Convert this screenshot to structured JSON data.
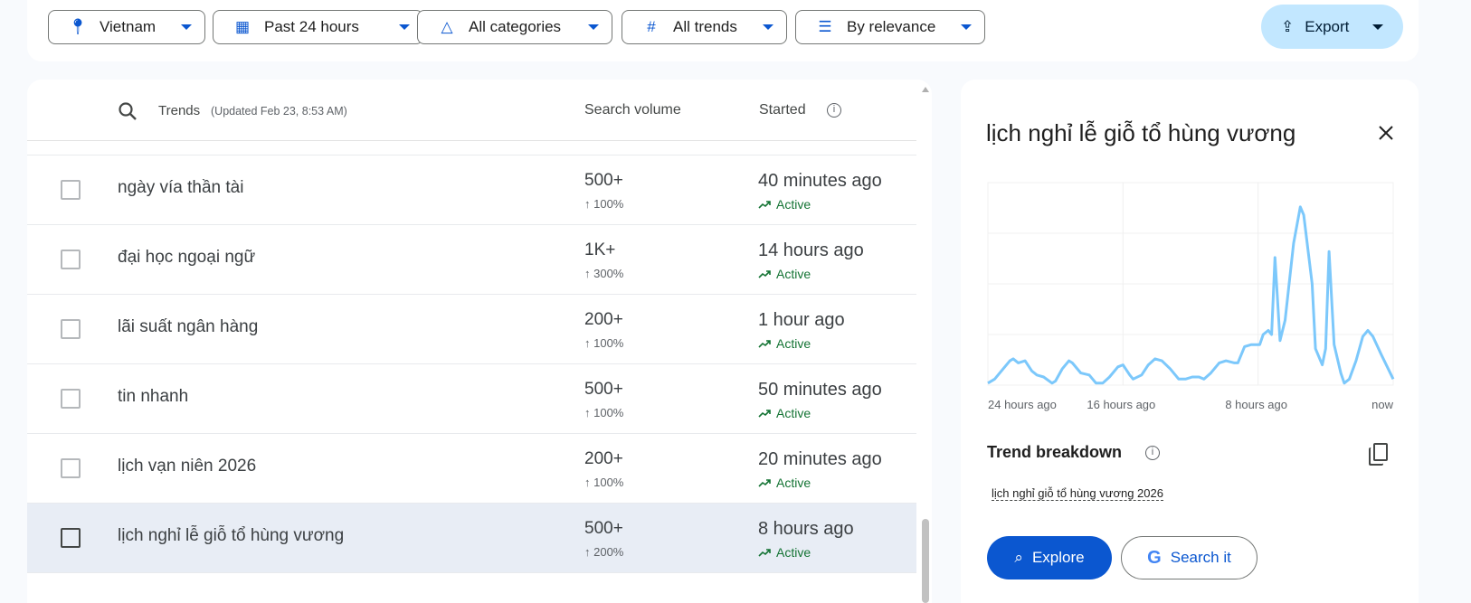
{
  "filters": [
    {
      "label": "Vietnam",
      "icon": "location-pin-icon"
    },
    {
      "label": "Past 24 hours",
      "icon": "calendar-icon"
    },
    {
      "label": "All categories",
      "icon": "categories-icon"
    },
    {
      "label": "All trends",
      "icon": "hash-icon"
    },
    {
      "label": "By relevance",
      "icon": "sort-icon"
    }
  ],
  "export_label": "Export",
  "table": {
    "header": {
      "trends": "Trends",
      "updated": "(Updated Feb 23, 8:53 AM)",
      "volume": "Search volume",
      "started": "Started"
    },
    "rows": [
      {
        "term": "ngày vía thần tài",
        "volume": "500+",
        "change": "↑ 100%",
        "started": "40 minutes ago",
        "status": "Active"
      },
      {
        "term": "đại học ngoại ngữ",
        "volume": "1K+",
        "change": "↑ 300%",
        "started": "14 hours ago",
        "status": "Active"
      },
      {
        "term": "lãi suất ngân hàng",
        "volume": "200+",
        "change": "↑ 100%",
        "started": "1 hour ago",
        "status": "Active"
      },
      {
        "term": "tin nhanh",
        "volume": "500+",
        "change": "↑ 100%",
        "started": "50 minutes ago",
        "status": "Active"
      },
      {
        "term": "lịch vạn niên 2026",
        "volume": "200+",
        "change": "↑ 100%",
        "started": "20 minutes ago",
        "status": "Active"
      },
      {
        "term": "lịch nghỉ lễ giỗ tổ hùng vương",
        "volume": "500+",
        "change": "↑ 200%",
        "started": "8 hours ago",
        "status": "Active",
        "selected": true
      }
    ]
  },
  "panel": {
    "title": "lịch nghỉ lễ giỗ tổ hùng vương",
    "breakdown_title": "Trend breakdown",
    "breakdown_items": [
      "lịch nghỉ giỗ tổ hùng vương 2026"
    ],
    "explore_label": "Explore",
    "search_label": "Search it"
  },
  "chart_data": {
    "type": "line",
    "xlabel": "",
    "ylabel": "",
    "x_tick_labels": [
      "24 hours ago",
      "16 hours ago",
      "8 hours ago",
      "now"
    ],
    "xlim": [
      -24,
      0
    ],
    "ylim": [
      0,
      100
    ],
    "grid": true,
    "color": "#7cc8fb",
    "points": [
      [
        -24,
        1
      ],
      [
        -23.6,
        3
      ],
      [
        -23.1,
        8
      ],
      [
        -22.7,
        12
      ],
      [
        -22.5,
        13
      ],
      [
        -22.2,
        11
      ],
      [
        -21.8,
        12
      ],
      [
        -21.4,
        7
      ],
      [
        -21.1,
        5
      ],
      [
        -20.7,
        4
      ],
      [
        -20.2,
        1
      ],
      [
        -20,
        2
      ],
      [
        -19.6,
        8
      ],
      [
        -19.2,
        12
      ],
      [
        -19,
        11
      ],
      [
        -18.5,
        6
      ],
      [
        -18,
        5
      ],
      [
        -17.6,
        1
      ],
      [
        -17.2,
        1
      ],
      [
        -16.8,
        4
      ],
      [
        -16.3,
        9
      ],
      [
        -16,
        10
      ],
      [
        -15.6,
        5
      ],
      [
        -15.4,
        3
      ],
      [
        -14.9,
        5
      ],
      [
        -14.5,
        10
      ],
      [
        -14.1,
        13
      ],
      [
        -13.7,
        12
      ],
      [
        -13.2,
        8
      ],
      [
        -12.7,
        3
      ],
      [
        -12.3,
        3
      ],
      [
        -11.9,
        4
      ],
      [
        -11.5,
        4
      ],
      [
        -11.2,
        3
      ],
      [
        -10.8,
        6
      ],
      [
        -10.3,
        11
      ],
      [
        -9.9,
        12
      ],
      [
        -9.4,
        11
      ],
      [
        -9.2,
        11
      ],
      [
        -8.8,
        19
      ],
      [
        -8.4,
        20
      ],
      [
        -7.9,
        20
      ],
      [
        -7.7,
        25
      ],
      [
        -7.4,
        27
      ],
      [
        -7.2,
        25
      ],
      [
        -7,
        63
      ],
      [
        -6.7,
        22
      ],
      [
        -6.4,
        32
      ],
      [
        -5.9,
        70
      ],
      [
        -5.5,
        88
      ],
      [
        -5.3,
        84
      ],
      [
        -4.8,
        50
      ],
      [
        -4.6,
        18
      ],
      [
        -4.2,
        10
      ],
      [
        -4,
        18
      ],
      [
        -3.8,
        66
      ],
      [
        -3.5,
        20
      ],
      [
        -3.1,
        6
      ],
      [
        -2.9,
        1
      ],
      [
        -2.6,
        3
      ],
      [
        -2.2,
        12
      ],
      [
        -1.8,
        24
      ],
      [
        -1.5,
        27
      ],
      [
        -1.2,
        24
      ],
      [
        -0.7,
        15
      ],
      [
        0,
        3
      ]
    ]
  }
}
